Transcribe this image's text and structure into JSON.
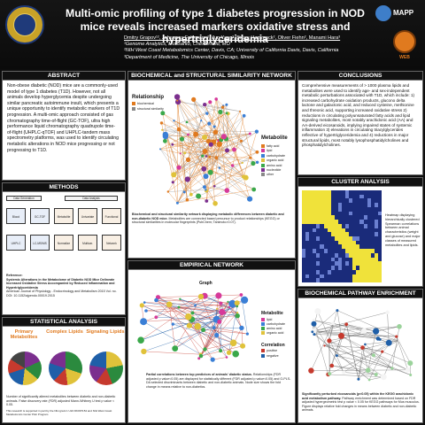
{
  "header": {
    "title": "Multi-omic profiling of type 1 diabetes progression in NOD mice reveals increased markers oxidative stress and hypertriglyceridemia",
    "authors": "Dmitry Grapov¹², Johannes Fahrmann², Jun Yang², Bruce Hammock², Oliver Fiehn², Manami Hara³",
    "aff1": "¹Genome Analytics, Monsanto, Chesterfield, MO",
    "aff2": "²NIH West Coast Metabolomics Center, Davis, CA; University of California Davis, Davis, California",
    "aff3": "³Department of Medicine, The University of Chicago, Illinois",
    "logo1": "MAPP",
    "logo2": "WEB"
  },
  "abstract": {
    "heading": "ABSTRACT",
    "text": "Non-obese diabetic (NOD) mice are a commonly-used model of type 1 diabetes (T1D). However, not all animals develop hyperglycemia despite undergoing similar pancreatic autoimmune insult, which presents a unique opportunity to identify metabolic markers of T1D progression. A multi-omic approach consisted of gas chromatography time-of-flight (GC-TOF), ultra high performance liquid chromatography quadrupole time-of-flight (UHPLC-qTOF) and UHPLC-tandem mass spectrometry platforms, was used to identify circulating metabolic alterations in NOD mice progressing or not progressing to T1D."
  },
  "methods": {
    "heading": "METHODS",
    "labels": [
      "Data Generation",
      "Data Analysis"
    ],
    "steps": [
      "Blood",
      "GC-TOF",
      "Metabolite",
      "Univariate",
      "Functional"
    ],
    "steps2": [
      "UHPLC",
      "LC-MS/MS",
      "Normalize",
      "Multivar.",
      "Network"
    ],
    "reference_label": "Reference:",
    "reference": "Systemic Alterations in the Metabolome of Diabetic NOD Mice Delineate Increased Oxidative Stress Accompanied by Reduced Inflammation and Hypertriglyceridemia",
    "journal": "American Journal of Physiology - Endocrinology and Metabolism 2015 Vol. no. DOI: 10.1152/ajpendo.00019.2015"
  },
  "stats": {
    "heading": "STATISTICAL ANALYSIS",
    "pies": [
      "Primary Metabolites",
      "Complex Lipids",
      "Signaling Lipids"
    ],
    "caption": "Number of significantly altered metabolites between diabetic and non-diabetic animals. False discovery rate (FDR) adjusted Mann-Whitney U test p value < 0.05.",
    "footer": "This research is supported in part by the NIH grant 1 U24 DK097154 and NIH West Coast Metabolomics Center Pilot Program"
  },
  "biochem": {
    "heading": "BIOCHEMICAL and STRUCTURAL SIMILARITY NETWORK",
    "legend_title": "Relationship",
    "legend": [
      "biochemical",
      "structural similarity"
    ],
    "metab_title": "Metabolite",
    "metab": [
      "fatty acid",
      "lipid",
      "carbohydrate",
      "organic acid",
      "amino acid",
      "nucleotide",
      "other"
    ],
    "caption": "Biochemical and structural similarity network displaying metabolic differences between diabetic and non-diabetic NOD mice.",
    "caption2": "Metabolites are connected based precursor to product relationships (KEGG) or structural similarities in molecular fingerprints (PubChem; Tanimoto>0.07)."
  },
  "empirical": {
    "heading": "EMPIRICAL NETWORK",
    "graph_title": "Graph",
    "legend_title": "Metabolite",
    "corr_title": "Correlation",
    "corr": [
      "positive",
      "negative"
    ],
    "caption": "Partial correlations between top predictors of animals' diabetic status.",
    "caption2": "Relationships (FDR adjusted p value<0.05) are displayed for statistically different (FDR adjusted p value<0.05) and O-PLS-DA selected discriminants between diabetic and non-diabetic animals. Node size shows the fold change in means relative to non-diabetics."
  },
  "conclusions": {
    "heading": "CONCLUSIONS",
    "text": "Comprehensive measurements of > 1000 plasma lipids and metabolites were used to identify age- and sex-independent metabolic perturbations associated with T1D, which include: 1) increased carbohydrate oxidation products, glucono delta lactone and galactonic acid, and reduced cysteine, methionine and threonic acid, supporting increased oxidative stress 2) reductions in circulating polyunsaturated fatty acids and lipid signaling metabolites, most notably arachidonic acid (AA) and AA-derived eicosanoids, implying impaired states of systemic inflammation 3) elevations in circulating triacylglycerides reflective of hypertriglyceridemia and 4) reductions in major structural lipids, most notably lysophosphatidylcholines and phosphatidylcholines."
  },
  "cluster": {
    "heading": "CLUSTER ANALYSIS",
    "caption": "Heatmap displaying hierarchically clustered Spearman correlations between animal characteristics (weight and glucose) and major classes of measured metabolites and lipids."
  },
  "pathway": {
    "heading": "BIOCHEMICAL PATHWAY ENRICHMENT",
    "caption_bold": "Significantly perturbed  eicosanoids (p<0.05) within the KEGG arachidonic acid metabolism pathway.",
    "caption": "Pathway enrichment was determined based on FDR adjusted hypergeometric test p value < 0.05 for KEGG pathways for Mus musculus. Figure displays relative fold changes in means between diabetic and non-diabetic animals."
  },
  "colors": {
    "header_bg": "#0d0d0d",
    "accent_orange": "#e07a1f",
    "heat_yellow": "#f0e23a",
    "heat_blue": "#1a2b7a"
  }
}
